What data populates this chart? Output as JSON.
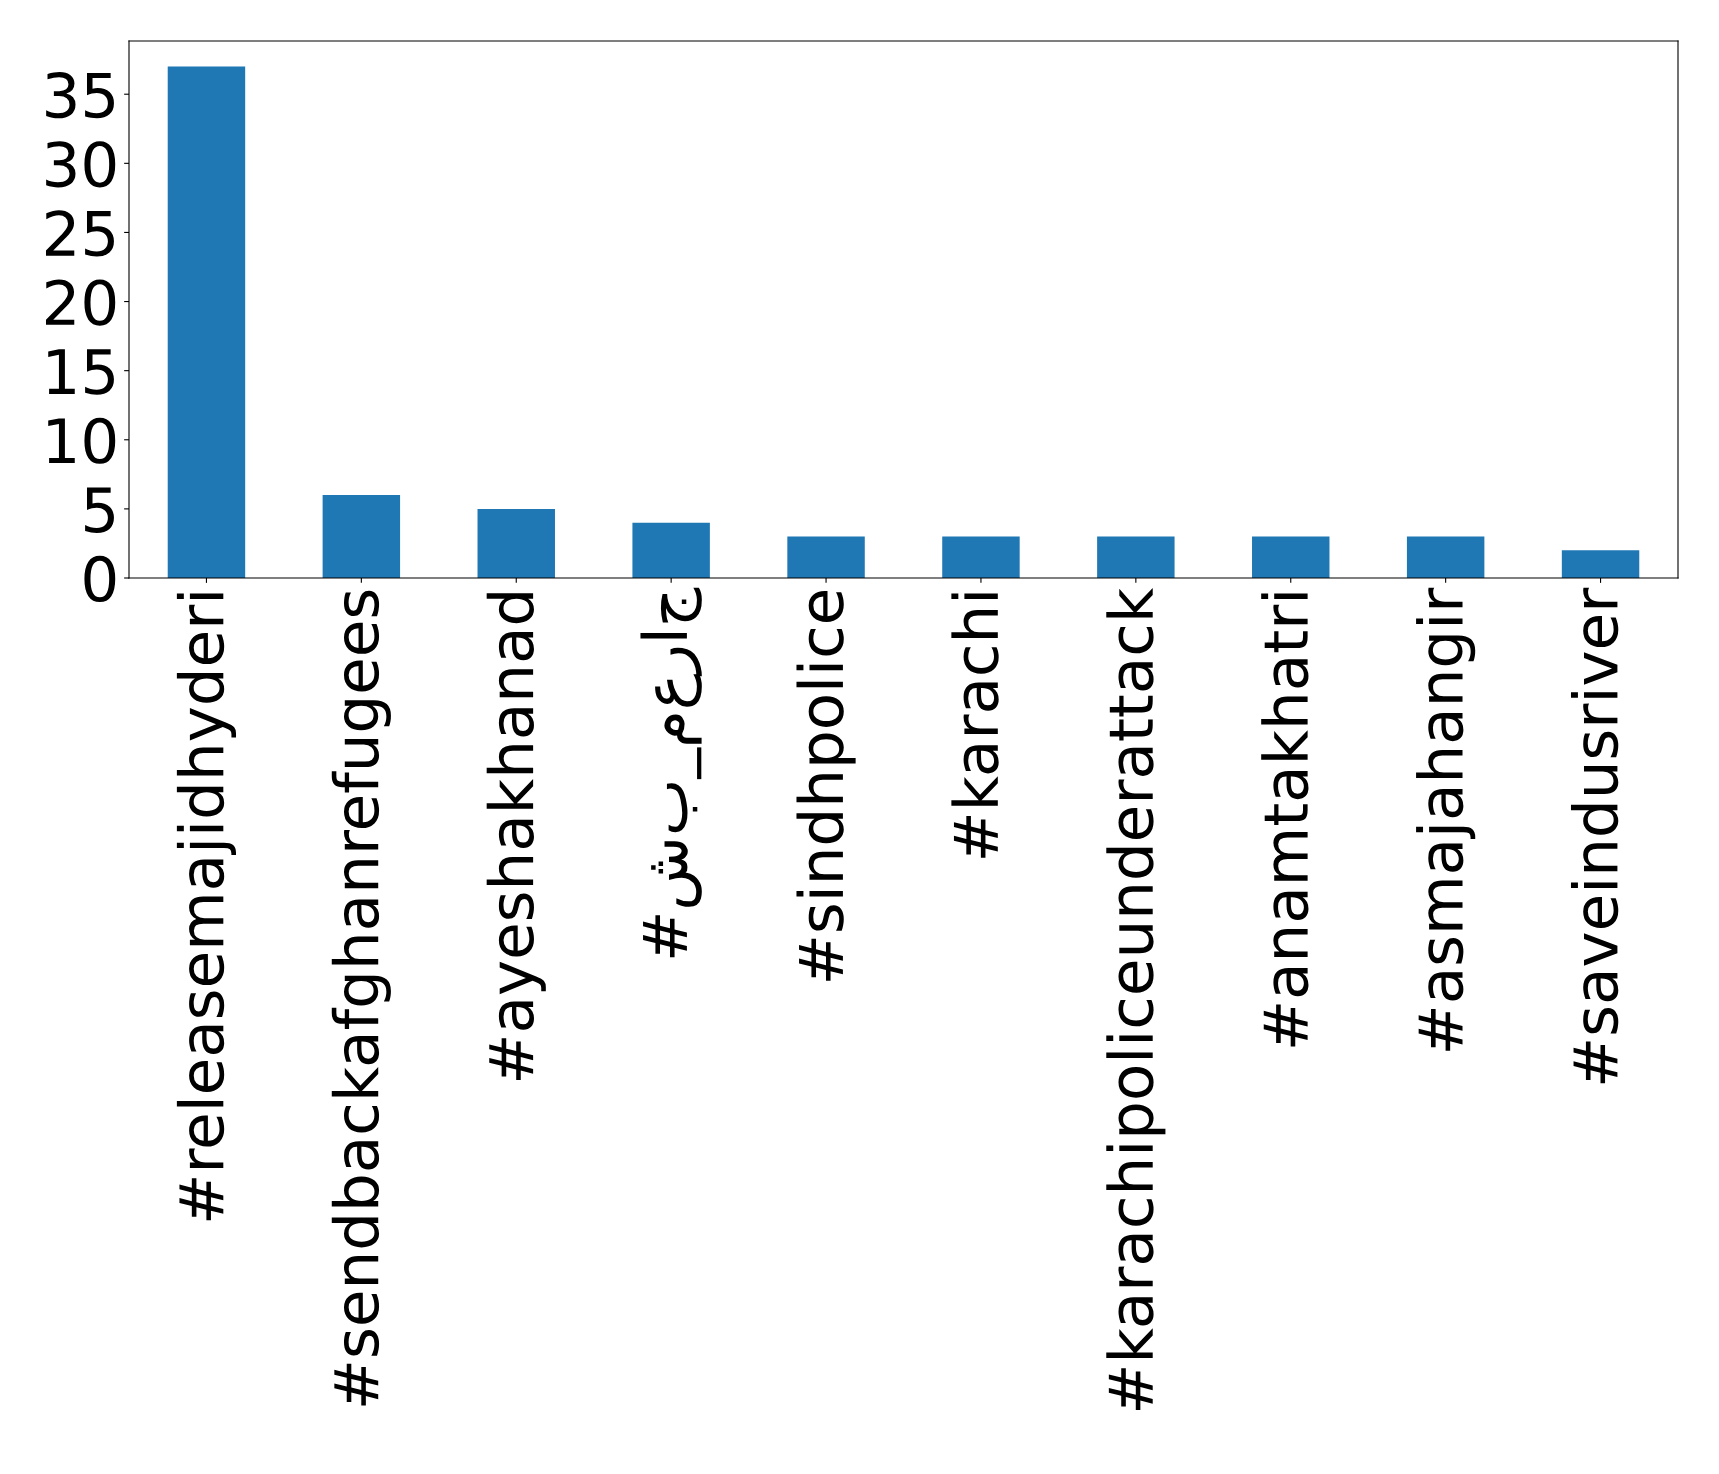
{
  "chart_data": {
    "type": "bar",
    "categories": [
      "#releasemajidhyderi",
      "#sendbackafghanrefugees",
      "#ayeshakhanad",
      "#شب_معراج",
      "#sindhpolice",
      "#karachi",
      "#karachipoliceunderattack",
      "#anamtakhatri",
      "#asmajahangir",
      "#saveindusriver"
    ],
    "values": [
      37,
      6,
      5,
      4,
      3,
      3,
      3,
      3,
      3,
      2
    ],
    "color": "#1f77b4",
    "ylim": [
      0,
      38.85
    ],
    "yticks": [
      0,
      5,
      10,
      15,
      20,
      25,
      30,
      35
    ],
    "grid": false,
    "legend": false
  }
}
